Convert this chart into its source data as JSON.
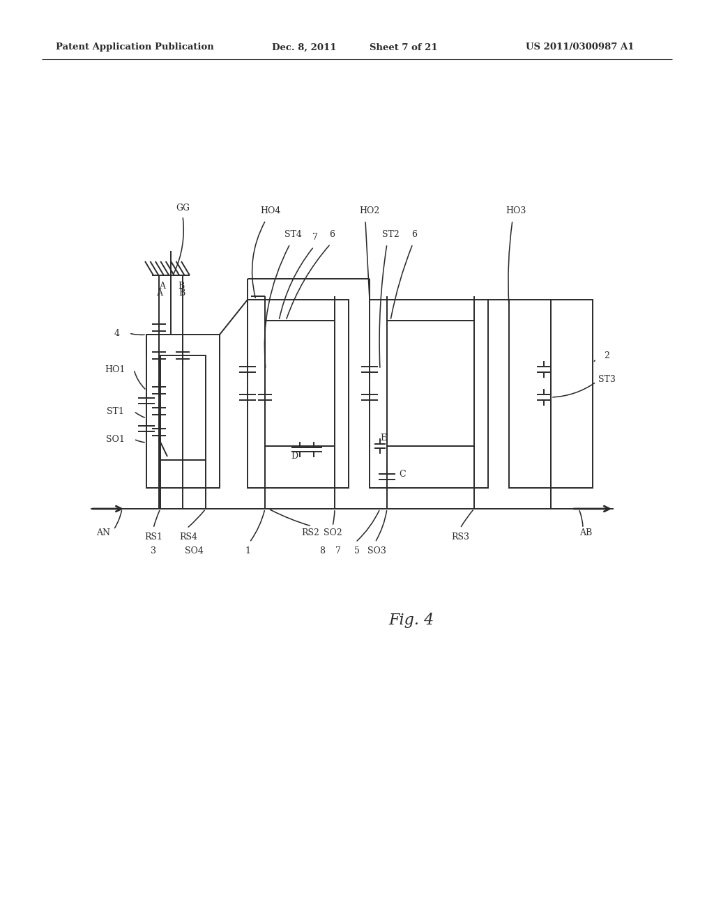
{
  "bg_color": "#ffffff",
  "line_color": "#2a2a2a",
  "header_left": "Patent Application Publication",
  "header_date": "Dec. 8, 2011",
  "header_sheet": "Sheet 7 of 21",
  "header_right": "US 2011/0300987 A1",
  "fig_label": "Fig. 4"
}
